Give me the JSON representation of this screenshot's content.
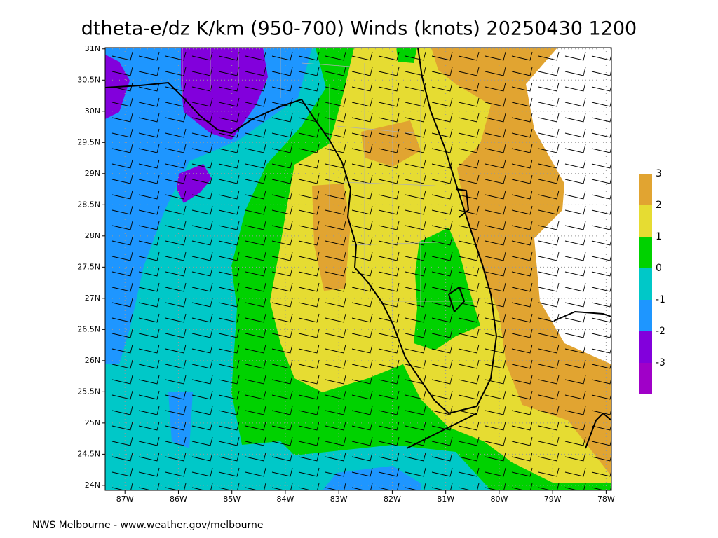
{
  "title": "dtheta-e/dz K/km (950-700) Winds (knots) 20250430 1200",
  "map": {
    "lonlim": [
      -87.37,
      -77.9
    ],
    "latlim": [
      23.92,
      31.02
    ],
    "lon_ticks": [
      {
        "value": -87,
        "label": "87W"
      },
      {
        "value": -86,
        "label": "86W"
      },
      {
        "value": -85,
        "label": "85W"
      },
      {
        "value": -84,
        "label": "84W"
      },
      {
        "value": -83,
        "label": "83W"
      },
      {
        "value": -82,
        "label": "82W"
      },
      {
        "value": -81,
        "label": "81W"
      },
      {
        "value": -80,
        "label": "80W"
      },
      {
        "value": -79,
        "label": "79W"
      },
      {
        "value": -78,
        "label": "78W"
      }
    ],
    "lat_ticks": [
      {
        "value": 31,
        "label": "31N"
      },
      {
        "value": 30.5,
        "label": "30.5N"
      },
      {
        "value": 30,
        "label": "30N"
      },
      {
        "value": 29.5,
        "label": "29.5N"
      },
      {
        "value": 29,
        "label": "29N"
      },
      {
        "value": 28.5,
        "label": "28.5N"
      },
      {
        "value": 28,
        "label": "28N"
      },
      {
        "value": 27.5,
        "label": "27.5N"
      },
      {
        "value": 27,
        "label": "27N"
      },
      {
        "value": 26.5,
        "label": "26.5N"
      },
      {
        "value": 26,
        "label": "26N"
      },
      {
        "value": 25.5,
        "label": "25.5N"
      },
      {
        "value": 25,
        "label": "25N"
      },
      {
        "value": 24.5,
        "label": "24.5N"
      },
      {
        "value": 24,
        "label": "24N"
      }
    ]
  },
  "colorbar": {
    "labels": [
      3,
      2,
      1,
      0,
      -1,
      -2,
      -3
    ],
    "colors": [
      "#e1a431",
      "#e6dc32",
      "#00d200",
      "#00c8c8",
      "#1e96ff",
      "#8200dc",
      "#a000c8"
    ]
  },
  "footer": "NWS Melbourne - www.weather.gov/melbourne"
}
